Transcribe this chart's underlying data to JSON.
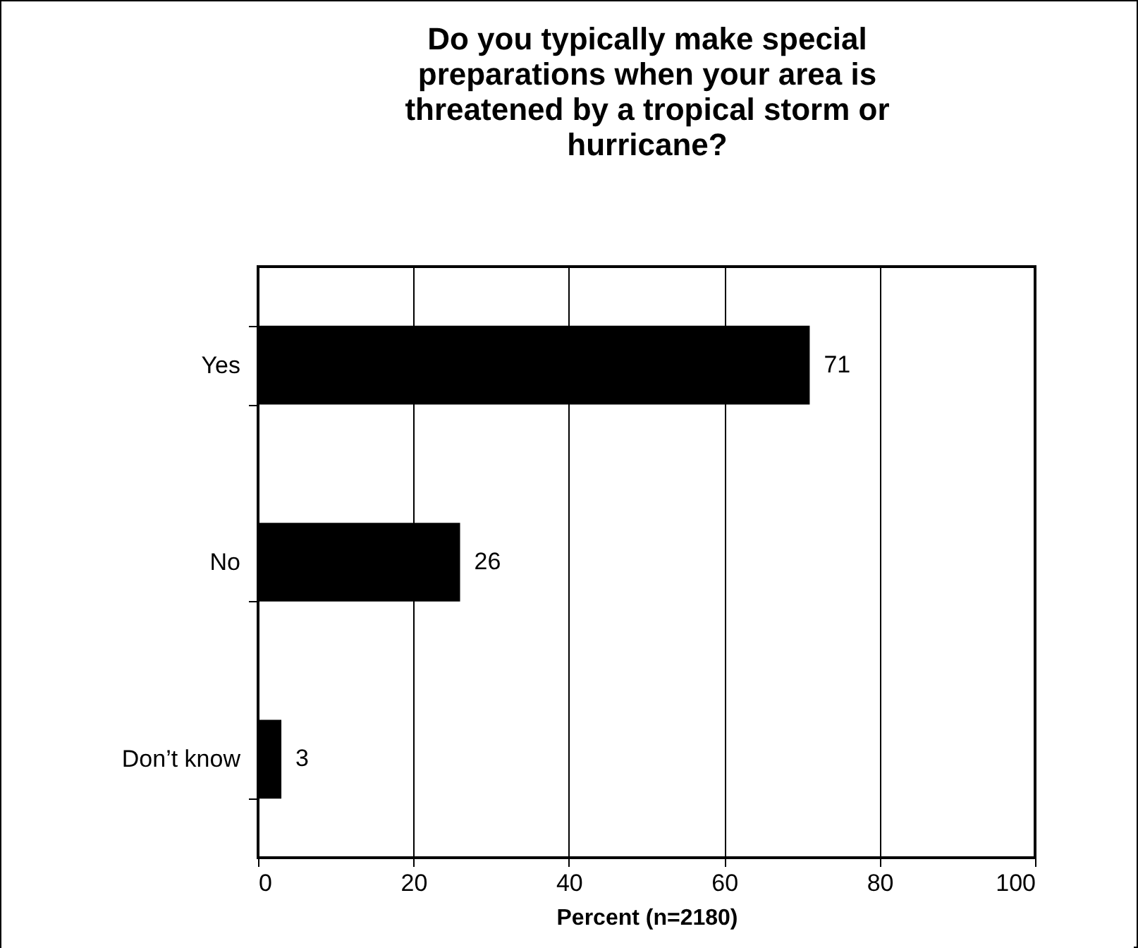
{
  "chart_data": {
    "type": "bar",
    "orientation": "horizontal",
    "title": "Do you typically make special preparations when your area is threatened by a tropical storm or hurricane?",
    "xlabel": "Percent (n=2180)",
    "categories": [
      "Yes",
      "No",
      "Don’t know"
    ],
    "values": [
      71,
      26,
      3
    ],
    "color": "#000000",
    "xlim": [
      0,
      100
    ],
    "xticks": [
      0,
      20,
      40,
      60,
      80,
      100
    ],
    "grid": "x",
    "data_labels": true
  }
}
